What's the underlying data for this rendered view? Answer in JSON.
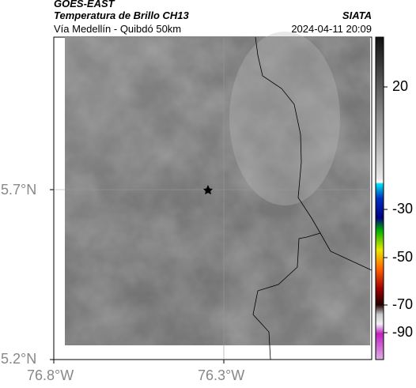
{
  "header": {
    "title": "GOES-EAST",
    "subtitle": "Temperatura de Brillo CH13",
    "location": "Vía Medellín - Quibdó 50km",
    "source": "SIATA",
    "timestamp": "2024-04-11 20:09"
  },
  "map": {
    "lat_labels": [
      "5.7°N",
      "5.2°N"
    ],
    "lon_labels": [
      "76.8°W",
      "76.3°W"
    ]
  },
  "colorbar": {
    "ticks": [
      20,
      -30,
      -50,
      -70,
      -90
    ]
  }
}
